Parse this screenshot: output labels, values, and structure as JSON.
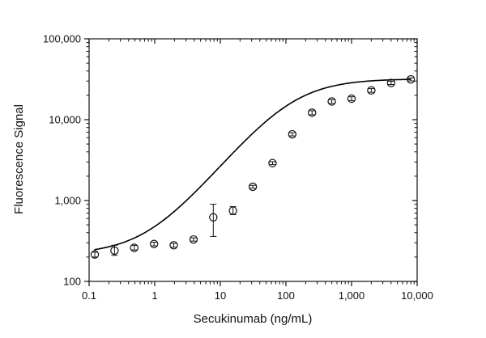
{
  "chart_data": {
    "type": "scatter",
    "title": "",
    "xlabel": "Secukinumab (ng/mL)",
    "ylabel": "Fluorescence Signal",
    "x_scale": "log",
    "y_scale": "log",
    "xlim": [
      0.1,
      10000
    ],
    "ylim": [
      100,
      100000
    ],
    "x_ticks": [
      {
        "value": 0.1,
        "label": "0.1"
      },
      {
        "value": 1,
        "label": "1"
      },
      {
        "value": 10,
        "label": "10"
      },
      {
        "value": 100,
        "label": "100"
      },
      {
        "value": 1000,
        "label": "1,000"
      },
      {
        "value": 10000,
        "label": "10,000"
      }
    ],
    "y_ticks": [
      {
        "value": 100,
        "label": "100"
      },
      {
        "value": 1000,
        "label": "1,000"
      },
      {
        "value": 10000,
        "label": "10,000"
      },
      {
        "value": 100000,
        "label": "100,000"
      }
    ],
    "grid": false,
    "legend": "none",
    "series": [
      {
        "marker": "open-circle",
        "x": [
          0.122,
          0.244,
          0.488,
          0.977,
          1.95,
          3.91,
          7.81,
          15.6,
          31.3,
          62.5,
          125,
          250,
          500,
          1000,
          2000,
          4000,
          8000
        ],
        "y": [
          215,
          240,
          260,
          290,
          280,
          330,
          620,
          750,
          1480,
          2900,
          6600,
          12200,
          16800,
          18200,
          23000,
          28500,
          31500
        ],
        "y_err_low": [
          200,
          210,
          245,
          275,
          265,
          315,
          360,
          670,
          1420,
          2780,
          6300,
          11500,
          15900,
          17200,
          21800,
          27200,
          30200
        ],
        "y_err_high": [
          230,
          280,
          278,
          305,
          295,
          345,
          900,
          840,
          1540,
          3020,
          6900,
          12900,
          17700,
          19200,
          24200,
          29800,
          32800
        ]
      }
    ],
    "fit_curve": {
      "model": "4PL",
      "bottom": 215,
      "top": 32000,
      "ec50": 120,
      "hill": 1.0,
      "color": "#000000"
    },
    "colors": {
      "axis": "#111111",
      "marker_stroke": "#111111",
      "marker_fill": "#ffffff",
      "curve": "#000000"
    }
  }
}
